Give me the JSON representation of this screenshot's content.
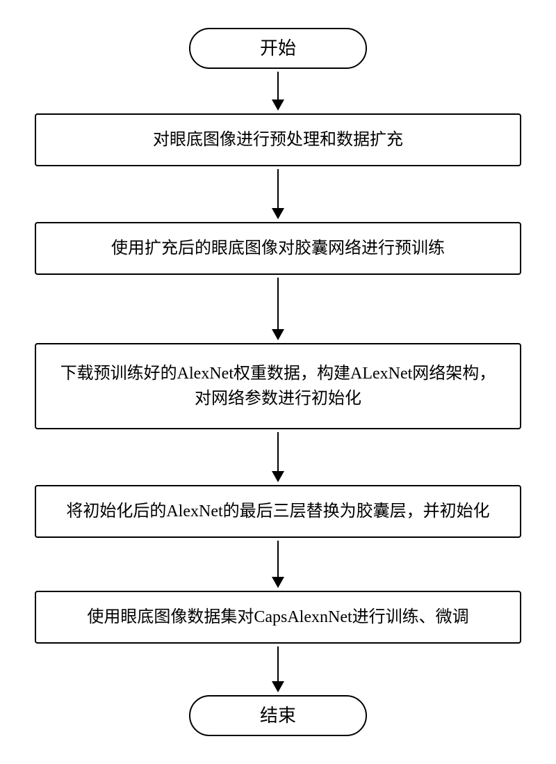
{
  "flow": {
    "start_label": "开始",
    "end_label": "结束",
    "steps": [
      "对眼底图像进行预处理和数据扩充",
      "使用扩充后的眼底图像对胶囊网络进行预训练",
      "下载预训练好的AlexNet权重数据，构建ALexNet网络架构，对网络参数进行初始化",
      "将初始化后的AlexNet的最后三层替换为胶囊层，并初始化",
      "使用眼底图像数据集对CapsAlexnNet进行训练、微调"
    ]
  },
  "style": {
    "box_border_color": "#000000",
    "background": "#ffffff",
    "arrow_len_short": 40,
    "arrow_len_after_step0": 56,
    "arrow_len_after_step1": 74,
    "arrow_len_after_step2": 56,
    "arrow_len_after_step3": 52,
    "arrow_len_after_step4": 50
  }
}
